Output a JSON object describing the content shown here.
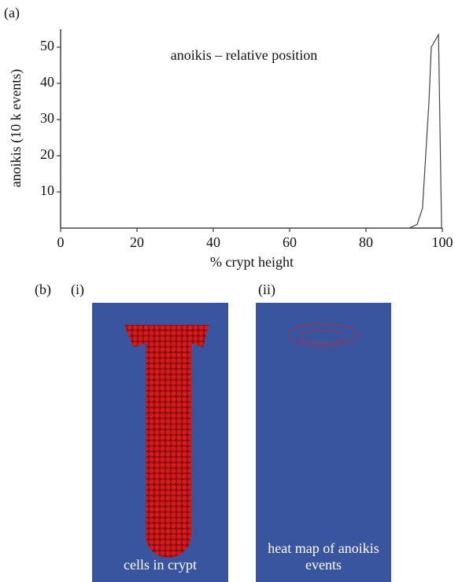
{
  "chart_data": {
    "type": "line",
    "title": "anoikis – relative position",
    "x_label": "% crypt height",
    "y_label": "anoikis (10 k events)",
    "x": [
      0,
      20,
      40,
      60,
      80,
      90,
      91.3,
      93.4,
      94.8,
      95.5,
      96.5,
      97.1,
      99,
      99.8
    ],
    "values": [
      0,
      0,
      0,
      0,
      0,
      0,
      0,
      1,
      5.5,
      17.5,
      34.9,
      50,
      53.5,
      0
    ],
    "color": "#444",
    "xlim": [
      0,
      100
    ],
    "xticks": [
      0,
      20,
      40,
      60,
      80,
      100
    ],
    "ylim": [
      0,
      55
    ],
    "yticks": [
      10,
      20,
      30,
      40,
      50
    ],
    "grid": false
  },
  "panels": {
    "a": "(a)",
    "b": "(b)",
    "i": {
      "label": "(i)",
      "caption": "cells in crypt"
    },
    "ii": {
      "label": "(ii)",
      "caption": "heat map of anoikis events"
    }
  }
}
